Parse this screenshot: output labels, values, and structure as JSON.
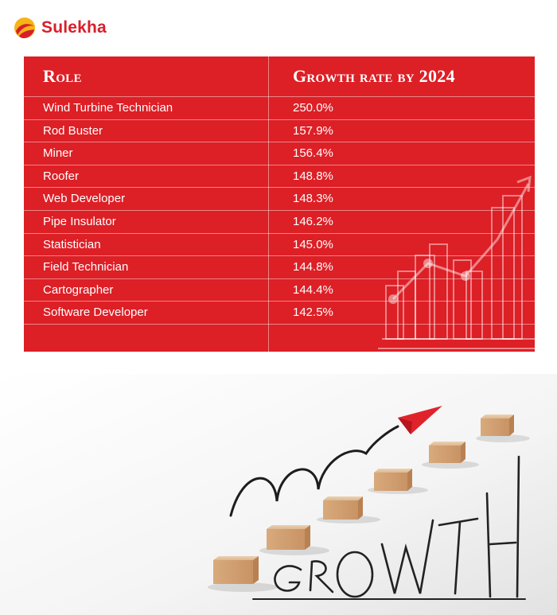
{
  "brand": {
    "name": "Sulekha",
    "color": "#d71f2b"
  },
  "table": {
    "background": "#dd1f26",
    "headers": {
      "role": "Role",
      "growth": "Growth rate by 2024"
    },
    "rows": [
      {
        "role": "Wind Turbine Technician",
        "growth": "250.0%"
      },
      {
        "role": "Rod Buster",
        "growth": "157.9%"
      },
      {
        "role": "Miner",
        "growth": "156.4%"
      },
      {
        "role": "Roofer",
        "growth": "148.8%"
      },
      {
        "role": "Web Developer",
        "growth": "148.3%"
      },
      {
        "role": "Pipe Insulator",
        "growth": "146.2%"
      },
      {
        "role": "Statistician",
        "growth": "145.0%"
      },
      {
        "role": "Field Technician",
        "growth": "144.8%"
      },
      {
        "role": "Cartographer",
        "growth": "144.4%"
      },
      {
        "role": "Software Developer",
        "growth": "142.5%"
      }
    ]
  },
  "illustration": {
    "word": "GROWTH",
    "icons": [
      "bar-chart-trend-icon",
      "paper-plane-icon",
      "wooden-steps"
    ]
  }
}
